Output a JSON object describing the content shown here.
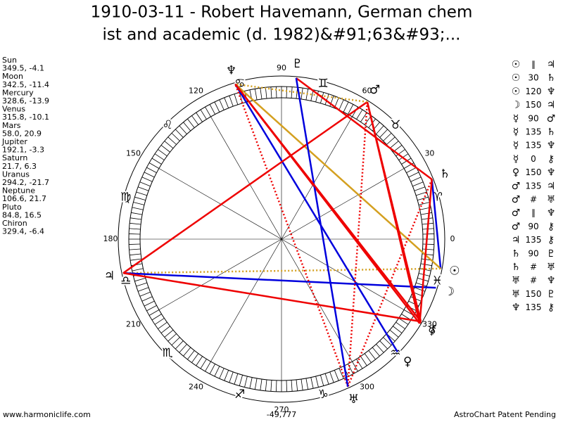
{
  "title": [
    "1910-03-11 - Robert Havemann, German chem",
    "ist and academic (d. 1982)&#91;63&#93;..."
  ],
  "planets": [
    {
      "name": "Sun",
      "glyph": "☉",
      "position": {
        "value": 349.5,
        "label": "349.5, -4.1"
      }
    },
    {
      "name": "Moon",
      "glyph": "☽",
      "position": {
        "value": 342.5,
        "label": "342.5, -11.4"
      }
    },
    {
      "name": "Mercury",
      "glyph": "☿",
      "position": {
        "value": 328.6,
        "label": "328.6, -13.9"
      }
    },
    {
      "name": "Venus",
      "glyph": "♀",
      "position": {
        "value": 315.8,
        "label": "315.8, -10.1"
      }
    },
    {
      "name": "Mars",
      "glyph": "♂",
      "position": {
        "value": 58.0,
        "label": "58.0, 20.9"
      }
    },
    {
      "name": "Jupiter",
      "glyph": "♃",
      "position": {
        "value": 192.1,
        "label": "192.1, -3.3"
      }
    },
    {
      "name": "Saturn",
      "glyph": "♄",
      "position": {
        "value": 21.7,
        "label": "21.7, 6.3"
      }
    },
    {
      "name": "Uranus",
      "glyph": "♅",
      "position": {
        "value": 294.2,
        "label": "294.2, -21.7"
      }
    },
    {
      "name": "Neptune",
      "glyph": "♆",
      "position": {
        "value": 106.6,
        "label": "106.6, 21.7"
      }
    },
    {
      "name": "Pluto",
      "glyph": "♇",
      "position": {
        "value": 84.8,
        "label": "84.8, 16.5"
      }
    },
    {
      "name": "Chiron",
      "glyph": "⚷",
      "position": {
        "value": 329.4,
        "label": "329.4, -6.4"
      }
    }
  ],
  "signs": [
    "♈",
    "♉",
    "♊",
    "♋",
    "♌",
    "♍",
    "♎",
    "♏",
    "♐",
    "♑",
    "♒",
    "♓"
  ],
  "degree_labels": [
    0,
    30,
    60,
    90,
    120,
    150,
    180,
    210,
    240,
    270,
    300,
    330
  ],
  "aspects": [
    {
      "from": "☉",
      "aspect": "∥",
      "to": "♃",
      "color": "#d4a020",
      "dotted": true
    },
    {
      "from": "☉",
      "aspect": 30,
      "to": "♄",
      "color": "#0000dd",
      "dotted": false
    },
    {
      "from": "☉",
      "aspect": 120,
      "to": "♆",
      "color": "#d4a020",
      "dotted": false
    },
    {
      "from": "☽",
      "aspect": 150,
      "to": "♃",
      "color": "#0000dd",
      "dotted": false
    },
    {
      "from": "☿",
      "aspect": 90,
      "to": "♂",
      "color": "#ee0000",
      "dotted": false
    },
    {
      "from": "☿",
      "aspect": 135,
      "to": "♄",
      "color": "#ee0000",
      "dotted": false
    },
    {
      "from": "☿",
      "aspect": 135,
      "to": "♆",
      "color": "#ee0000",
      "dotted": false
    },
    {
      "from": "☿",
      "aspect": 0,
      "to": "⚷",
      "color": "#ee0000",
      "dotted": false
    },
    {
      "from": "♀",
      "aspect": 150,
      "to": "♆",
      "color": "#0000dd",
      "dotted": false
    },
    {
      "from": "♂",
      "aspect": 135,
      "to": "♃",
      "color": "#ee0000",
      "dotted": false
    },
    {
      "from": "♂",
      "aspect": "#",
      "to": "♅",
      "color": "#ee0000",
      "dotted": true
    },
    {
      "from": "♂",
      "aspect": "∥",
      "to": "♆",
      "color": "#d4a020",
      "dotted": true
    },
    {
      "from": "♂",
      "aspect": 90,
      "to": "⚷",
      "color": "#ee0000",
      "dotted": false
    },
    {
      "from": "♃",
      "aspect": 135,
      "to": "⚷",
      "color": "#ee0000",
      "dotted": false
    },
    {
      "from": "♄",
      "aspect": 90,
      "to": "♇",
      "color": "#ee0000",
      "dotted": false
    },
    {
      "from": "♄",
      "aspect": "#",
      "to": "♅",
      "color": "#ee0000",
      "dotted": true
    },
    {
      "from": "♅",
      "aspect": "#",
      "to": "♆",
      "color": "#ee0000",
      "dotted": true
    },
    {
      "from": "♅",
      "aspect": 150,
      "to": "♇",
      "color": "#0000dd",
      "dotted": false
    },
    {
      "from": "♆",
      "aspect": 135,
      "to": "⚷",
      "color": "#ee0000",
      "dotted": false
    }
  ],
  "footer": {
    "left": "www.harmoniclife.com",
    "center": "-49,777",
    "right": "AstroChart Patent Pending"
  }
}
